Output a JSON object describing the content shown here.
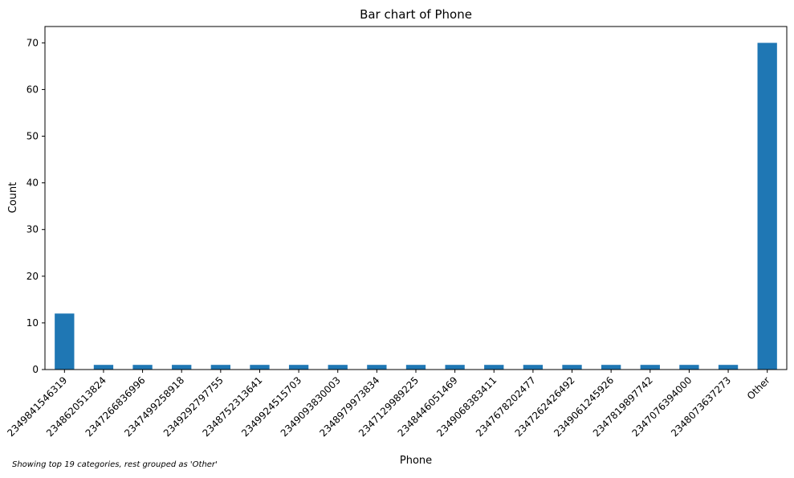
{
  "chart_data": {
    "type": "bar",
    "title": "Bar chart of Phone",
    "xlabel": "Phone",
    "ylabel": "Count",
    "ylim": [
      0,
      73.5
    ],
    "yticks": [
      0,
      10,
      20,
      30,
      40,
      50,
      60,
      70
    ],
    "categories": [
      "2349841546319",
      "2348620513824",
      "2347266836996",
      "2347499258918",
      "2349292797755",
      "2348752313641",
      "2349924515703",
      "2349093830003",
      "2348979973834",
      "2347129989225",
      "2348446051469",
      "2349068383411",
      "2347678202477",
      "2347262426492",
      "2349061245926",
      "2347819897742",
      "2347076394000",
      "2348073637273",
      "Other"
    ],
    "values": [
      12,
      1,
      1,
      1,
      1,
      1,
      1,
      1,
      1,
      1,
      1,
      1,
      1,
      1,
      1,
      1,
      1,
      1,
      70
    ],
    "bar_color": "#1f77b4",
    "grid": false,
    "legend": "none"
  },
  "footnote": "Showing top 19 categories, rest grouped as 'Other'"
}
